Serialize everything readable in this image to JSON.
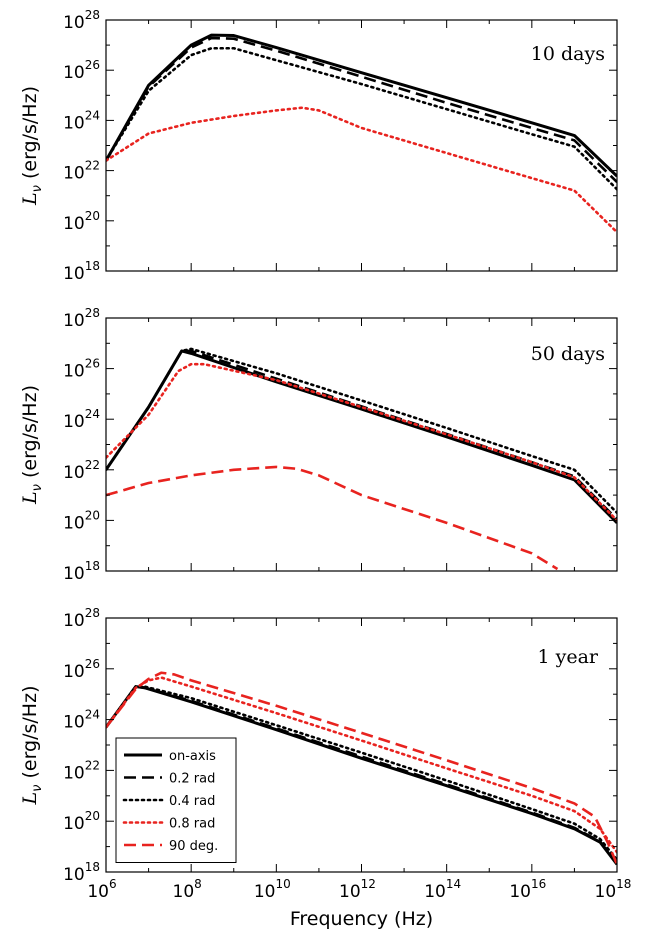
{
  "chart_data": [
    {
      "type": "line",
      "annotation": "10 days",
      "xlabel": "",
      "ylabel": "L_ν (erg/s/Hz)",
      "xscale": "log",
      "yscale": "log",
      "xlim": [
        1000000.0,
        1e+18
      ],
      "ylim": [
        1e+18,
        1e+28
      ],
      "x_tick_labels": [],
      "y_tick_labels": [
        {
          "base": "10",
          "exp": "18"
        },
        {
          "base": "10",
          "exp": "20"
        },
        {
          "base": "10",
          "exp": "22"
        },
        {
          "base": "10",
          "exp": "24"
        },
        {
          "base": "10",
          "exp": "26"
        },
        {
          "base": "10",
          "exp": "28"
        }
      ],
      "series": [
        {
          "name": "on-axis",
          "color": "#000000",
          "style": "solid",
          "points": [
            [
              1000000.0,
              2.5e+22
            ],
            [
              10000000.0,
              2.5e+25
            ],
            [
              100000000.0,
              1e+27
            ],
            [
              300000000.0,
              2.5e+27
            ],
            [
              1000000000.0,
              2.4e+27
            ],
            [
              10000000000.0,
              8e+26
            ],
            [
              1000000000000.0,
              8e+25
            ],
            [
              100000000000000.0,
              8e+24
            ],
            [
              1e+16,
              8e+23
            ],
            [
              1e+17,
              2.5e+23
            ],
            [
              1e+18,
              6e+21
            ]
          ]
        },
        {
          "name": "0.2 rad",
          "color": "#000000",
          "style": "dashed",
          "points": [
            [
              1000000.0,
              2.5e+22
            ],
            [
              10000000.0,
              2.2e+25
            ],
            [
              100000000.0,
              8e+26
            ],
            [
              300000000.0,
              1.9e+27
            ],
            [
              1000000000.0,
              1.8e+27
            ],
            [
              10000000000.0,
              6e+26
            ],
            [
              1000000000000.0,
              5.5e+25
            ],
            [
              100000000000000.0,
              5e+24
            ],
            [
              1e+16,
              5e+23
            ],
            [
              1e+17,
              1.6e+23
            ],
            [
              1e+18,
              3.5e+21
            ]
          ]
        },
        {
          "name": "0.4 rad",
          "color": "#000000",
          "style": "dotted",
          "points": [
            [
              1000000.0,
              2.5e+22
            ],
            [
              10000000.0,
              1.5e+25
            ],
            [
              100000000.0,
              4e+26
            ],
            [
              300000000.0,
              7.5e+26
            ],
            [
              1000000000.0,
              7.5e+26
            ],
            [
              10000000000.0,
              2.5e+26
            ],
            [
              1000000000000.0,
              2.8e+25
            ],
            [
              100000000000000.0,
              2.8e+24
            ],
            [
              1e+16,
              2.8e+23
            ],
            [
              1e+17,
              9e+22
            ],
            [
              1e+18,
              1.8e+21
            ]
          ]
        },
        {
          "name": "0.8 rad",
          "color": "#e8231f",
          "style": "dotted",
          "points": [
            [
              1000000.0,
              2.5e+22
            ],
            [
              10000000.0,
              3e+23
            ],
            [
              100000000.0,
              8e+23
            ],
            [
              1000000000.0,
              1.5e+24
            ],
            [
              10000000000.0,
              2.5e+24
            ],
            [
              40000000000.0,
              3.2e+24
            ],
            [
              100000000000.0,
              2.5e+24
            ],
            [
              1000000000000.0,
              5e+23
            ],
            [
              100000000000000.0,
              5e+22
            ],
            [
              1e+16,
              5e+21
            ],
            [
              1e+17,
              1.6e+21
            ],
            [
              1e+18,
              3.5e+19
            ]
          ]
        }
      ]
    },
    {
      "type": "line",
      "annotation": "50 days",
      "xlabel": "",
      "ylabel": "L_ν (erg/s/Hz)",
      "xscale": "log",
      "yscale": "log",
      "xlim": [
        1000000.0,
        1e+18
      ],
      "ylim": [
        1e+18,
        1e+28
      ],
      "x_tick_labels": [],
      "y_tick_labels": [
        {
          "base": "10",
          "exp": "18"
        },
        {
          "base": "10",
          "exp": "20"
        },
        {
          "base": "10",
          "exp": "22"
        },
        {
          "base": "10",
          "exp": "24"
        },
        {
          "base": "10",
          "exp": "26"
        },
        {
          "base": "10",
          "exp": "28"
        }
      ],
      "series": [
        {
          "name": "on-axis",
          "color": "#000000",
          "style": "solid",
          "points": [
            [
              1000000.0,
              1e+22
            ],
            [
              10000000.0,
              3e+24
            ],
            [
              60000000.0,
              5e+26
            ],
            [
              100000000.0,
              4e+26
            ],
            [
              10000000000.0,
              3e+25
            ],
            [
              1000000000000.0,
              2.5e+24
            ],
            [
              100000000000000.0,
              2e+23
            ],
            [
              1e+16,
              1.5e+22
            ],
            [
              1e+17,
              4e+21
            ],
            [
              1e+18,
              8e+19
            ]
          ]
        },
        {
          "name": "0.2 rad",
          "color": "#000000",
          "style": "dashed",
          "points": [
            [
              1000000.0,
              1e+22
            ],
            [
              10000000.0,
              3e+24
            ],
            [
              60000000.0,
              5e+26
            ],
            [
              100000000.0,
              5e+26
            ],
            [
              10000000000.0,
              4e+25
            ],
            [
              1000000000000.0,
              3.2e+24
            ],
            [
              100000000000000.0,
              2.6e+23
            ],
            [
              1e+16,
              2e+22
            ],
            [
              1e+17,
              5.5e+21
            ],
            [
              1e+18,
              1.1e+20
            ]
          ]
        },
        {
          "name": "0.4 rad",
          "color": "#000000",
          "style": "dotted",
          "points": [
            [
              1000000.0,
              1e+22
            ],
            [
              10000000.0,
              3e+24
            ],
            [
              60000000.0,
              5e+26
            ],
            [
              100000000.0,
              6e+26
            ],
            [
              10000000000.0,
              6.5e+25
            ],
            [
              1000000000000.0,
              5.5e+24
            ],
            [
              100000000000000.0,
              4.5e+23
            ],
            [
              1e+16,
              3.5e+22
            ],
            [
              1e+17,
              1e+22
            ],
            [
              1e+18,
              2e+20
            ]
          ]
        },
        {
          "name": "0.8 rad",
          "color": "#e8231f",
          "style": "dotted",
          "points": [
            [
              1000000.0,
              3e+22
            ],
            [
              10000000.0,
              1.5e+24
            ],
            [
              50000000.0,
              8e+25
            ],
            [
              100000000.0,
              1.5e+26
            ],
            [
              200000000.0,
              1.5e+26
            ],
            [
              10000000000.0,
              3.5e+25
            ],
            [
              1000000000000.0,
              3e+24
            ],
            [
              100000000000000.0,
              2.5e+23
            ],
            [
              1e+16,
              2e+22
            ],
            [
              1e+17,
              5e+21
            ],
            [
              1e+18,
              1e+20
            ]
          ]
        },
        {
          "name": "90 deg.",
          "color": "#e8231f",
          "style": "dashed",
          "points": [
            [
              1000000.0,
              1e+21
            ],
            [
              10000000.0,
              3e+21
            ],
            [
              100000000.0,
              6e+21
            ],
            [
              1000000000.0,
              1e+22
            ],
            [
              10000000000.0,
              1.3e+22
            ],
            [
              30000000000.0,
              1.1e+22
            ],
            [
              100000000000.0,
              6e+21
            ],
            [
              1000000000000.0,
              1e+21
            ],
            [
              100000000000000.0,
              8e+19
            ],
            [
              1e+16,
              5e+18
            ],
            [
              4e+16,
              1.2e+18
            ]
          ]
        }
      ]
    },
    {
      "type": "line",
      "annotation": "1 year",
      "xlabel": "Frequency (Hz)",
      "ylabel": "L_ν (erg/s/Hz)",
      "xscale": "log",
      "yscale": "log",
      "xlim": [
        1000000.0,
        1e+18
      ],
      "ylim": [
        1e+18,
        1e+28
      ],
      "x_tick_labels": [
        {
          "base": "10",
          "exp": "6"
        },
        {
          "base": "10",
          "exp": "8"
        },
        {
          "base": "10",
          "exp": "10"
        },
        {
          "base": "10",
          "exp": "12"
        },
        {
          "base": "10",
          "exp": "14"
        },
        {
          "base": "10",
          "exp": "16"
        },
        {
          "base": "10",
          "exp": "18"
        }
      ],
      "y_tick_labels": [
        {
          "base": "10",
          "exp": "18"
        },
        {
          "base": "10",
          "exp": "20"
        },
        {
          "base": "10",
          "exp": "22"
        },
        {
          "base": "10",
          "exp": "24"
        },
        {
          "base": "10",
          "exp": "26"
        },
        {
          "base": "10",
          "exp": "28"
        }
      ],
      "legend": {
        "location": "lower-left",
        "entries": [
          {
            "label": "on-axis",
            "color": "#000000",
            "style": "solid"
          },
          {
            "label": "0.2 rad",
            "color": "#000000",
            "style": "dashed"
          },
          {
            "label": "0.4 rad",
            "color": "#000000",
            "style": "dotted"
          },
          {
            "label": "0.8 rad",
            "color": "#e8231f",
            "style": "dotted"
          },
          {
            "label": "90 deg.",
            "color": "#e8231f",
            "style": "dashed"
          }
        ]
      },
      "series": [
        {
          "name": "on-axis",
          "color": "#000000",
          "style": "solid",
          "points": [
            [
              1000000.0,
              5e+23
            ],
            [
              5000000.0,
              2e+25
            ],
            [
              8000000.0,
              1.8e+25
            ],
            [
              100000000.0,
              5e+24
            ],
            [
              10000000000.0,
              4e+23
            ],
            [
              1000000000000.0,
              3e+22
            ],
            [
              100000000000000.0,
              2.5e+21
            ],
            [
              1e+16,
              2e+20
            ],
            [
              1e+17,
              5e+19
            ],
            [
              4e+17,
              1.5e+19
            ],
            [
              1e+18,
              2e+18
            ]
          ]
        },
        {
          "name": "0.2 rad",
          "color": "#000000",
          "style": "dashed",
          "points": [
            [
              1000000.0,
              5e+23
            ],
            [
              5000000.0,
              2e+25
            ],
            [
              8000000.0,
              1.8e+25
            ],
            [
              100000000.0,
              5.5e+24
            ],
            [
              10000000000.0,
              4.5e+23
            ],
            [
              1000000000000.0,
              3.5e+22
            ],
            [
              100000000000000.0,
              2.8e+21
            ],
            [
              1e+16,
              2.2e+20
            ],
            [
              1e+17,
              5.5e+19
            ],
            [
              4e+17,
              1.6e+19
            ],
            [
              1e+18,
              2.2e+18
            ]
          ]
        },
        {
          "name": "0.4 rad",
          "color": "#000000",
          "style": "dotted",
          "points": [
            [
              1000000.0,
              5e+23
            ],
            [
              5000000.0,
              2e+25
            ],
            [
              8000000.0,
              2e+25
            ],
            [
              100000000.0,
              7e+24
            ],
            [
              10000000000.0,
              6e+23
            ],
            [
              1000000000000.0,
              5e+22
            ],
            [
              100000000000000.0,
              4e+21
            ],
            [
              1e+16,
              3e+20
            ],
            [
              1e+17,
              8e+19
            ],
            [
              4e+17,
              2e+19
            ],
            [
              1e+18,
              3e+18
            ]
          ]
        },
        {
          "name": "0.8 rad",
          "color": "#e8231f",
          "style": "dotted",
          "points": [
            [
              1000000.0,
              5e+23
            ],
            [
              5000000.0,
              1.8e+25
            ],
            [
              10000000.0,
              3.5e+25
            ],
            [
              20000000.0,
              4.5e+25
            ],
            [
              100000000.0,
              2e+25
            ],
            [
              10000000000.0,
              1.8e+24
            ],
            [
              1000000000000.0,
              1.5e+23
            ],
            [
              100000000000000.0,
              1.2e+22
            ],
            [
              1e+16,
              1e+21
            ],
            [
              1e+17,
              2.5e+20
            ],
            [
              4e+17,
              5e+19
            ],
            [
              1e+18,
              6e+18
            ]
          ]
        },
        {
          "name": "90 deg.",
          "color": "#e8231f",
          "style": "dashed",
          "points": [
            [
              1000000.0,
              5e+23
            ],
            [
              5000000.0,
              1.6e+25
            ],
            [
              10000000.0,
              4e+25
            ],
            [
              20000000.0,
              7e+25
            ],
            [
              40000000.0,
              6e+25
            ],
            [
              100000000.0,
              3.5e+25
            ],
            [
              10000000000.0,
              3.5e+24
            ],
            [
              1000000000000.0,
              3e+23
            ],
            [
              100000000000000.0,
              2.5e+22
            ],
            [
              1e+16,
              2e+21
            ],
            [
              1e+17,
              5e+20
            ],
            [
              3e+17,
              1.5e+20
            ],
            [
              6e+17,
              1.5e+19
            ],
            [
              1e+18,
              2e+18
            ]
          ]
        }
      ]
    }
  ]
}
